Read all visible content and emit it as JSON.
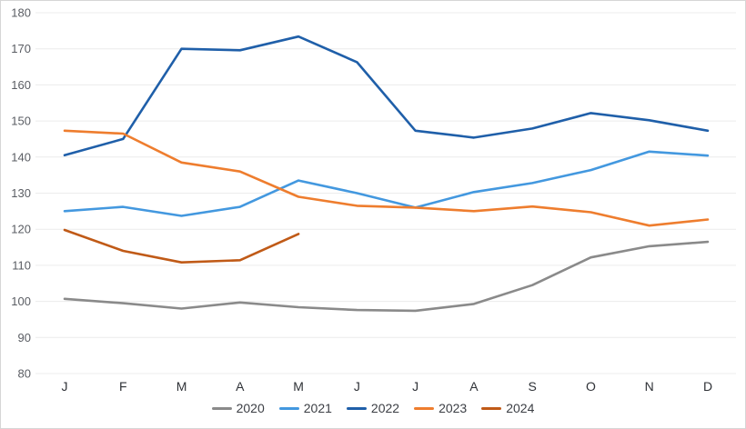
{
  "chart_data": {
    "type": "line",
    "title": "",
    "xlabel": "",
    "ylabel": "",
    "x_categories": [
      "J",
      "F",
      "M",
      "A",
      "M",
      "J",
      "J",
      "A",
      "S",
      "O",
      "N",
      "D"
    ],
    "y_axis": {
      "min": 80,
      "max": 180,
      "step": 10,
      "tick_labels": [
        "80",
        "90",
        "100",
        "110",
        "120",
        "130",
        "140",
        "150",
        "160",
        "170",
        "180"
      ]
    },
    "grid": "horizontal-only",
    "legend_position": "bottom-center",
    "series": [
      {
        "name": "2020",
        "color": "#8a8a8a",
        "values": [
          100.7,
          99.5,
          98.0,
          99.7,
          98.4,
          97.6,
          97.4,
          99.3,
          104.5,
          112.2,
          115.3,
          116.5
        ]
      },
      {
        "name": "2021",
        "color": "#4398df",
        "values": [
          125.0,
          126.2,
          123.7,
          126.2,
          133.5,
          130.0,
          126.0,
          130.3,
          132.8,
          136.4,
          141.5,
          140.4
        ]
      },
      {
        "name": "2022",
        "color": "#1f5fa9",
        "values": [
          140.5,
          145.0,
          170.0,
          169.6,
          173.4,
          166.3,
          147.3,
          145.4,
          147.9,
          152.2,
          150.2,
          147.3
        ]
      },
      {
        "name": "2023",
        "color": "#ee7d2e",
        "values": [
          147.3,
          146.5,
          138.5,
          136.0,
          129.0,
          126.5,
          126.0,
          125.0,
          126.3,
          124.7,
          121.0,
          122.7
        ]
      },
      {
        "name": "2024",
        "color": "#c05a17",
        "values": [
          119.8,
          114.0,
          110.8,
          111.4,
          118.7
        ]
      }
    ]
  }
}
